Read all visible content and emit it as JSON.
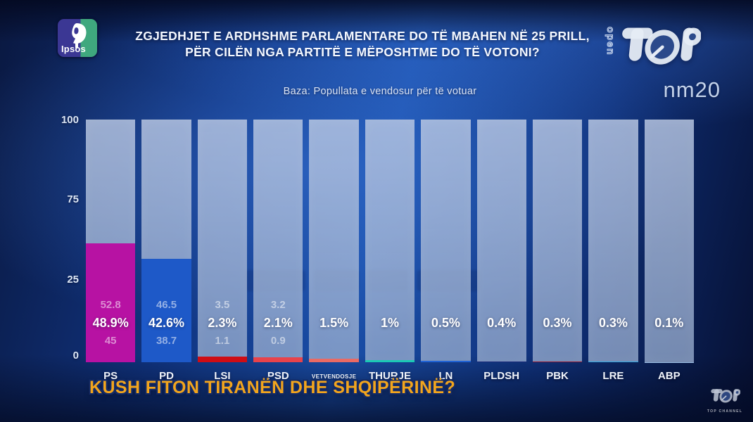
{
  "header": {
    "ipsos_logo_text": "Ipsos",
    "title_line1": "ZGJEDHJET E ARDHSHME PARLAMENTARE DO TË MBAHEN NË 25 PRILL,",
    "title_line2": "PËR CILËN NGA PARTITË E MËPOSHTME DO TË VOTONI?",
    "open_text": "open",
    "screen_code": "nm20"
  },
  "subtitle": "Baza: Popullata e vendosur për të votuar",
  "chart_data": {
    "type": "bar",
    "title": "ZGJEDHJET E ARDHSHME PARLAMENTARE DO TË MBAHEN NË 25 PRILL, PËR CILËN NGA PARTITË E MËPOSHTME DO TË VOTONI?",
    "base_note": "Baza: Popullata e vendosur për të votuar",
    "ylim": [
      0,
      100
    ],
    "y_ticks": [
      "100",
      "75",
      "25",
      "0"
    ],
    "grid": false,
    "legend": "none",
    "categories": [
      "PS",
      "PD",
      "LSI",
      "PSD",
      "VETVENDOSJE",
      "THURJE",
      "LN",
      "PLDSH",
      "PBK",
      "LRE",
      "ABP"
    ],
    "values": [
      48.9,
      42.6,
      2.3,
      2.1,
      1.5,
      1,
      0.5,
      0.4,
      0.3,
      0.3,
      0.1
    ],
    "value_labels": [
      "48.9%",
      "42.6%",
      "2.3%",
      "2.1%",
      "1.5%",
      "1%",
      "0.5%",
      "0.4%",
      "0.3%",
      "0.3%",
      "0.1%"
    ],
    "ci_high": [
      "52.8",
      "46.5",
      "3.5",
      "3.2",
      "",
      "",
      "",
      "",
      "",
      "",
      ""
    ],
    "ci_low": [
      "45",
      "38.7",
      "1.1",
      "0.9",
      "",
      "",
      "",
      "",
      "",
      "",
      ""
    ],
    "bar_colors": [
      "#b712a3",
      "#1e59c8",
      "#cf0d15",
      "#e8434b",
      "#ea6a64",
      "#1bc9b4",
      "#2163d4",
      "#1b2a78",
      "#8e1731",
      "#2ea6e0",
      "#9fc2e8"
    ],
    "column_bg_color": "#a7bbde"
  },
  "footer": {
    "headline": "KUSH FITON TIRANËN DHE SHQIPËRINË?",
    "channel_caption": "TOP CHANNEL"
  },
  "colors": {
    "headline_yellow": "#f2a51d",
    "background_blue": "#1a4ea8",
    "ps_magenta": "#b712a3",
    "pd_blue": "#1e59c8"
  }
}
